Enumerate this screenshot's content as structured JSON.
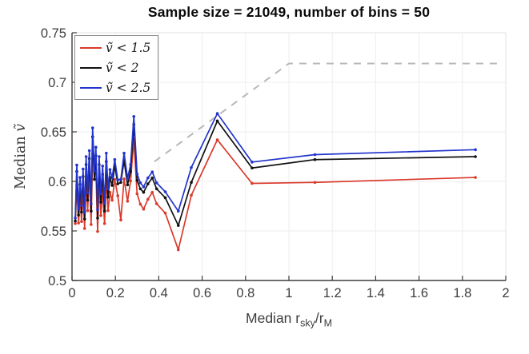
{
  "figure": {
    "title": "Sample size = 21049, number of bins = 50",
    "ylabel": {
      "prefix": "Median ",
      "variable": "ṽ"
    },
    "xlabel": {
      "pre": "Median r",
      "sub1": "sky",
      "mid": "/r",
      "sub2": "M"
    }
  },
  "legend": {
    "position": "top-left",
    "items": [
      {
        "label": "ṽ < 1.5",
        "color": "#d93a2b"
      },
      {
        "label": "ṽ < 2",
        "color": "#111111"
      },
      {
        "label": "ṽ < 2.5",
        "color": "#2234cc"
      }
    ]
  },
  "chart_data": {
    "type": "line",
    "title": "Sample size = 21049, number of bins = 50",
    "xlabel": "Median r_sky/r_M",
    "ylabel": "Median v-tilde",
    "xlim": [
      0,
      2
    ],
    "ylim": [
      0.5,
      0.75
    ],
    "xticks": [
      0,
      0.2,
      0.4,
      0.6,
      0.8,
      1,
      1.2,
      1.4,
      1.6,
      1.8,
      2
    ],
    "xtick_labels": [
      "0",
      "0.2",
      "0.4",
      "0.6",
      "0.8",
      "1",
      "1.2",
      "1.4",
      "1.6",
      "1.8",
      "2"
    ],
    "yticks": [
      0.5,
      0.55,
      0.6,
      0.65,
      0.7,
      0.75
    ],
    "ytick_labels": [
      "0.5",
      "0.55",
      "0.6",
      "0.65",
      "0.7",
      "0.75"
    ],
    "grid": true,
    "legend_position": "top-left",
    "x": [
      0.015,
      0.022,
      0.03,
      0.037,
      0.044,
      0.051,
      0.058,
      0.065,
      0.072,
      0.08,
      0.088,
      0.095,
      0.103,
      0.11,
      0.118,
      0.125,
      0.133,
      0.141,
      0.15,
      0.158,
      0.166,
      0.175,
      0.185,
      0.197,
      0.211,
      0.225,
      0.24,
      0.256,
      0.27,
      0.285,
      0.3,
      0.315,
      0.33,
      0.35,
      0.37,
      0.39,
      0.43,
      0.49,
      0.55,
      0.67,
      0.83,
      1.12,
      1.86
    ],
    "series": [
      {
        "name": "ṽ < 1.5",
        "color": "#d93a2b",
        "marker": "dot",
        "values": [
          0.5575,
          0.596,
          0.558,
          0.585,
          0.5595,
          0.592,
          0.5525,
          0.604,
          0.5705,
          0.61,
          0.5565,
          0.628,
          0.622,
          0.6105,
          0.5495,
          0.602,
          0.5655,
          0.592,
          0.5575,
          0.605,
          0.5705,
          0.589,
          0.581,
          0.602,
          0.5855,
          0.561,
          0.6025,
          0.58,
          0.6005,
          0.6425,
          0.5875,
          0.577,
          0.572,
          0.582,
          0.589,
          0.5775,
          0.568,
          0.531,
          0.586,
          0.642,
          0.598,
          0.599,
          0.604
        ]
      },
      {
        "name": "ṽ < 2",
        "color": "#111111",
        "marker": "dot",
        "values": [
          0.56,
          0.61,
          0.566,
          0.597,
          0.569,
          0.605,
          0.562,
          0.617,
          0.581,
          0.623,
          0.57,
          0.645,
          0.602,
          0.626,
          0.563,
          0.617,
          0.579,
          0.607,
          0.57,
          0.62,
          0.584,
          0.604,
          0.596,
          0.616,
          0.5975,
          0.599,
          0.621,
          0.5965,
          0.61,
          0.6575,
          0.601,
          0.5925,
          0.589,
          0.5975,
          0.6035,
          0.5925,
          0.5835,
          0.5555,
          0.599,
          0.661,
          0.6135,
          0.622,
          0.625
        ]
      },
      {
        "name": "ṽ < 2.5",
        "color": "#2234cc",
        "marker": "dot",
        "values": [
          0.563,
          0.6165,
          0.572,
          0.604,
          0.5755,
          0.6125,
          0.5685,
          0.625,
          0.5885,
          0.631,
          0.5775,
          0.654,
          0.6105,
          0.6345,
          0.5715,
          0.625,
          0.5875,
          0.6155,
          0.578,
          0.6285,
          0.5925,
          0.612,
          0.6035,
          0.622,
          0.6015,
          0.602,
          0.6285,
          0.603,
          0.617,
          0.6655,
          0.6075,
          0.5985,
          0.5945,
          0.6035,
          0.6095,
          0.5985,
          0.5895,
          0.57,
          0.614,
          0.6685,
          0.6195,
          0.627,
          0.632
        ]
      }
    ],
    "reference_line": {
      "style": "dashed",
      "color": "#b8b8b8",
      "x": [
        0.38,
        1.0,
        1.97
      ],
      "y": [
        0.62,
        0.719,
        0.719
      ]
    },
    "colors": {
      "axis": "#3d3d3d",
      "grid": "#efecec",
      "box_light": "#e3e3e3",
      "background": "#ffffff"
    }
  }
}
